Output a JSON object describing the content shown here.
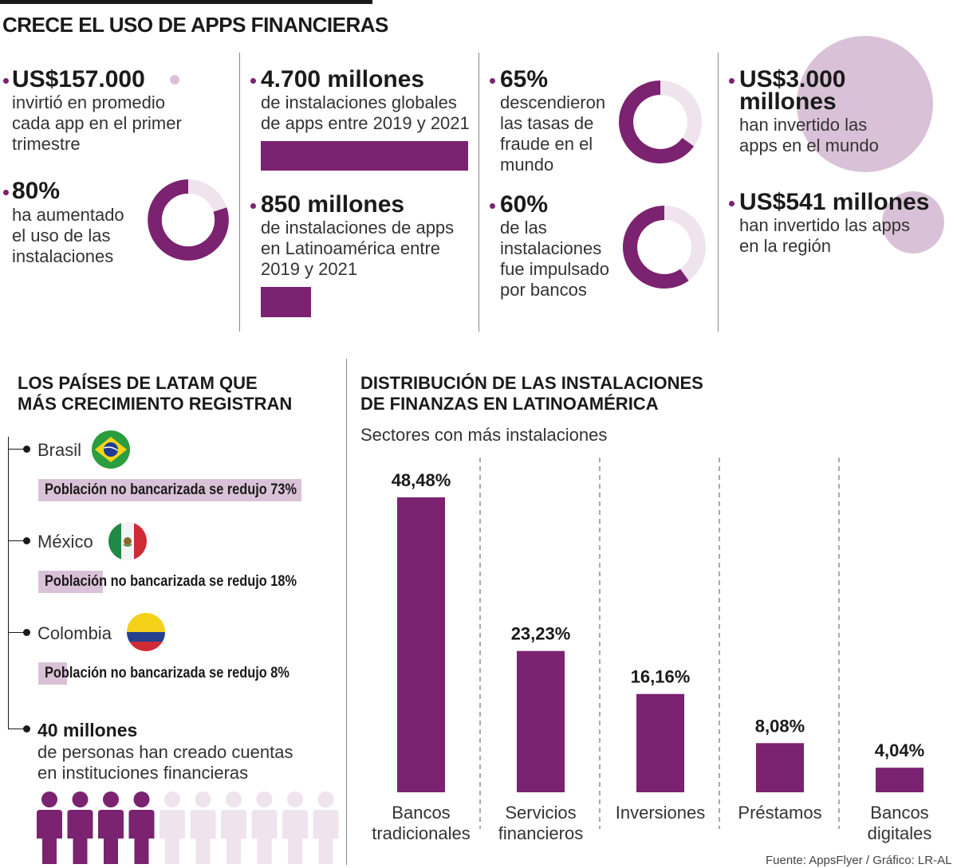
{
  "title": "CRECE EL USO DE APPS FINANCIERAS",
  "colors": {
    "accent": "#7b2270",
    "light": "#d9c2d7",
    "pale": "#efe3ee"
  },
  "stats": {
    "s1": {
      "value": "US$157.000",
      "text": [
        "invirtió en promedio",
        "cada app en el primer",
        "trimestre"
      ]
    },
    "s2": {
      "value": "80%",
      "percent": 80,
      "text": [
        "ha aumentado",
        "el uso de las",
        "instalaciones"
      ]
    },
    "s3": {
      "value": "4.700 millones",
      "text": [
        "de instalaciones globales",
        "de apps entre 2019 y 2021"
      ]
    },
    "s4": {
      "value": "850 millones",
      "text": [
        "de instalaciones de apps",
        "en Latinoamérica entre",
        "2019 y 2021"
      ]
    },
    "s5": {
      "value": "65%",
      "percent": 65,
      "text": [
        "descendieron",
        "las tasas de",
        "fraude en el",
        "mundo"
      ]
    },
    "s6": {
      "value": "60%",
      "percent": 60,
      "text": [
        "de las",
        "instalaciones",
        "fue impulsado",
        "por bancos"
      ]
    },
    "s7": {
      "value_line1": "US$3.000",
      "value_line2": "millones",
      "text": [
        "han invertido las",
        "apps en el mundo"
      ]
    },
    "s8": {
      "value": "US$541 millones",
      "text": [
        "han invertido las apps",
        "en la región"
      ]
    }
  },
  "countries": {
    "title": [
      "LOS PAÍSES DE LATAM QUE",
      "MÁS CRECIMIENTO REGISTRAN"
    ],
    "items": [
      {
        "name": "Brasil",
        "flag": "brazil-flag-icon",
        "label": "Población no bancarizada se redujo 73%",
        "percent": 73
      },
      {
        "name": "México",
        "flag": "mexico-flag-icon",
        "label": "Población no bancarizada se redujo 18%",
        "percent": 18
      },
      {
        "name": "Colombia",
        "flag": "colombia-flag-icon",
        "label": "Población no bancarizada se redujo 8%",
        "percent": 8
      }
    ],
    "people": {
      "value": "40 millones",
      "text": [
        "de personas han creado cuentas",
        "en instituciones financieras"
      ],
      "filled": 4,
      "total": 10
    }
  },
  "chart_data": {
    "type": "bar",
    "title": "DISTRIBUCIÓN DE LAS INSTALACIONES DE FINANZAS EN LATINOAMÉRICA",
    "title_lines": [
      "DISTRIBUCIÓN DE LAS INSTALACIONES",
      "DE FINANZAS EN LATINOAMÉRICA"
    ],
    "subtitle": "Sectores con más instalaciones",
    "categories": [
      [
        "Bancos",
        "tradicionales"
      ],
      [
        "Servicios",
        "financieros"
      ],
      [
        "Inversiones"
      ],
      [
        "Préstamos"
      ],
      [
        "Bancos",
        "digitales"
      ]
    ],
    "values": [
      48.48,
      23.23,
      16.16,
      8.08,
      4.04
    ],
    "value_labels": [
      "48,48%",
      "23,23%",
      "16,16%",
      "8,08%",
      "4,04%"
    ],
    "xlabel": "",
    "ylabel": "",
    "ylim": [
      0,
      48.48
    ],
    "grid": false
  },
  "source": "Fuente: AppsFlyer / Gráfico: LR-AL"
}
